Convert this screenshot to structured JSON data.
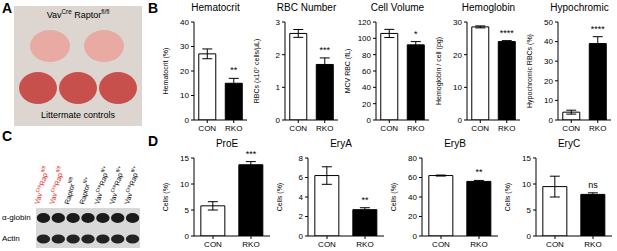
{
  "figure": {
    "panel_labels": [
      "A",
      "B",
      "C",
      "D"
    ],
    "photo": {
      "top_label": [
        {
          "text": "Vav"
        },
        {
          "text": "Cre",
          "sup": true
        },
        {
          "text": " Raptor"
        },
        {
          "text": "fl/fl",
          "sup": true
        }
      ],
      "bottom_label": "Littermate controls"
    },
    "blot": {
      "lanes": [
        {
          "parts": [
            {
              "text": "Vav"
            },
            {
              "text": "Cre",
              "sup": true
            },
            {
              "text": "Rap"
            },
            {
              "text": "fl/fl",
              "sup": true
            }
          ],
          "color": "#e0201c"
        },
        {
          "parts": [
            {
              "text": "Vav"
            },
            {
              "text": "Cre",
              "sup": true
            },
            {
              "text": "Rap"
            },
            {
              "text": "fl/fl",
              "sup": true
            }
          ],
          "color": "#e0201c"
        },
        {
          "parts": [
            {
              "text": "Raptor"
            },
            {
              "text": "fl/fl",
              "sup": true
            }
          ],
          "color": "#000000"
        },
        {
          "parts": [
            {
              "text": "Raptor"
            },
            {
              "text": "fl/+",
              "sup": true
            }
          ],
          "color": "#000000"
        },
        {
          "parts": [
            {
              "text": "Vav"
            },
            {
              "text": "Cre",
              "sup": true
            },
            {
              "text": "Rap"
            },
            {
              "text": "fl/+",
              "sup": true
            }
          ],
          "color": "#000000"
        },
        {
          "parts": [
            {
              "text": "Vav"
            },
            {
              "text": "Cre",
              "sup": true
            },
            {
              "text": "Rap"
            },
            {
              "text": "fl/+",
              "sup": true
            }
          ],
          "color": "#000000"
        },
        {
          "parts": [
            {
              "text": "Vav"
            },
            {
              "text": "Cre",
              "sup": true
            },
            {
              "text": "Rap"
            },
            {
              "text": "fl/+",
              "sup": true
            }
          ],
          "color": "#000000"
        }
      ],
      "rows": [
        "α-globin",
        "Actin"
      ]
    }
  },
  "chart_data": [
    {
      "type": "bar",
      "title": "Hematocrit",
      "y_label": "Hematocrit (%)",
      "categories": [
        "CON",
        "RKO"
      ],
      "values": [
        27,
        15
      ],
      "errors": [
        2,
        2
      ],
      "colors": [
        "#ffffff",
        "#000000"
      ],
      "annotations": [
        null,
        "**"
      ],
      "ylim": [
        0,
        40
      ],
      "yticks": [
        0,
        10,
        20,
        30,
        40
      ]
    },
    {
      "type": "bar",
      "title": "RBC Number",
      "y_label": "RBCs (x10⁷ cells/μL)",
      "categories": [
        "CON",
        "RKO"
      ],
      "values": [
        2.65,
        1.7
      ],
      "errors": [
        0.12,
        0.2
      ],
      "colors": [
        "#ffffff",
        "#000000"
      ],
      "annotations": [
        null,
        "***"
      ],
      "ylim": [
        0,
        3
      ],
      "yticks": [
        0,
        1,
        2,
        3
      ]
    },
    {
      "type": "bar",
      "title": "Cell Volume",
      "y_label": "MCV RBC (fL)",
      "categories": [
        "CON",
        "RKO"
      ],
      "values": [
        106,
        92
      ],
      "errors": [
        5,
        4
      ],
      "colors": [
        "#ffffff",
        "#000000"
      ],
      "annotations": [
        null,
        "*"
      ],
      "ylim": [
        0,
        120
      ],
      "yticks": [
        0,
        20,
        40,
        60,
        80,
        100,
        120
      ]
    },
    {
      "type": "bar",
      "title": "Hemoglobin",
      "y_label": "Hemoglobin / cell (pg)",
      "categories": [
        "CON",
        "RKO"
      ],
      "values": [
        28.5,
        24
      ],
      "errors": [
        0.3,
        0.3
      ],
      "colors": [
        "#ffffff",
        "#000000"
      ],
      "annotations": [
        null,
        "****"
      ],
      "ylim": [
        0,
        30
      ],
      "yticks": [
        0,
        10,
        20,
        30
      ]
    },
    {
      "type": "bar",
      "title": "Hypochromic",
      "y_label": "Hypochromic RBCs (%)",
      "categories": [
        "CON",
        "RKO"
      ],
      "values": [
        4,
        39
      ],
      "errors": [
        1,
        3.5
      ],
      "colors": [
        "#ffffff",
        "#000000"
      ],
      "annotations": [
        null,
        "****"
      ],
      "ylim": [
        0,
        50
      ],
      "yticks": [
        0,
        10,
        20,
        30,
        40,
        50
      ]
    },
    {
      "type": "bar",
      "title": "ProE",
      "y_label": "Cells (%)",
      "categories": [
        "CON",
        "RKO"
      ],
      "values": [
        5.8,
        13.7
      ],
      "errors": [
        0.8,
        0.6
      ],
      "colors": [
        "#ffffff",
        "#000000"
      ],
      "annotations": [
        null,
        "***"
      ],
      "ylim": [
        0,
        15
      ],
      "yticks": [
        0,
        5,
        10,
        15
      ]
    },
    {
      "type": "bar",
      "title": "EryA",
      "y_label": "Cells (%)",
      "categories": [
        "CON",
        "RKO"
      ],
      "values": [
        6.2,
        2.7
      ],
      "errors": [
        0.9,
        0.2
      ],
      "colors": [
        "#ffffff",
        "#000000"
      ],
      "annotations": [
        null,
        "**"
      ],
      "ylim": [
        0,
        8
      ],
      "yticks": [
        0,
        2,
        4,
        6,
        8
      ]
    },
    {
      "type": "bar",
      "title": "EryB",
      "y_label": "Cells (%)",
      "categories": [
        "CON",
        "RKO"
      ],
      "values": [
        62,
        56
      ],
      "errors": [
        0.5,
        1
      ],
      "colors": [
        "#ffffff",
        "#000000"
      ],
      "annotations": [
        null,
        "**"
      ],
      "ylim": [
        0,
        80
      ],
      "yticks": [
        0,
        20,
        40,
        60,
        80
      ]
    },
    {
      "type": "bar",
      "title": "EryC",
      "y_label": "Cells (%)",
      "categories": [
        "CON",
        "RKO"
      ],
      "values": [
        9.5,
        8
      ],
      "errors": [
        2,
        0.3
      ],
      "colors": [
        "#ffffff",
        "#000000"
      ],
      "annotations": [
        null,
        "ns"
      ],
      "ylim": [
        0,
        15
      ],
      "yticks": [
        0,
        5,
        10,
        15
      ]
    }
  ]
}
